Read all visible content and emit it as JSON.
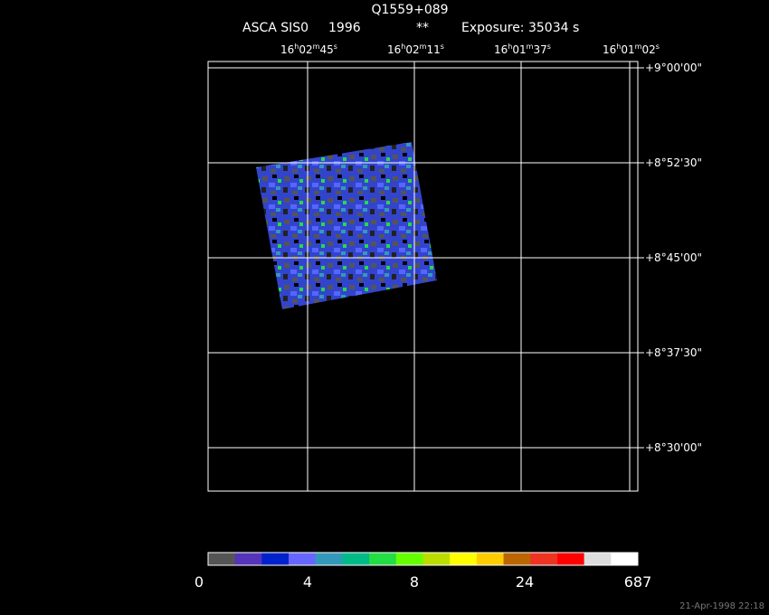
{
  "header": {
    "title": "Q1559+089",
    "instrument": "ASCA SIS0",
    "year": "1996",
    "flag": "**",
    "exposure": "Exposure: 35034 s"
  },
  "ra_ticks": [
    [
      "16",
      "h",
      "02",
      "m",
      "45",
      "s"
    ],
    [
      "16",
      "h",
      "02",
      "m",
      "11",
      "s"
    ],
    [
      "16",
      "h",
      "01",
      "m",
      "37",
      "s"
    ],
    [
      "16",
      "h",
      "01",
      "m",
      "02",
      "s"
    ]
  ],
  "dec_ticks": [
    "+9°00'00\"",
    "+8°52'30\"",
    "+8°45'00\"",
    "+8°37'30\"",
    "+8°30'00\""
  ],
  "colorbar": {
    "colors": [
      "#555555",
      "#5533bb",
      "#0022cc",
      "#6666ff",
      "#3399bb",
      "#00bb88",
      "#22dd44",
      "#66ff00",
      "#bbdd00",
      "#ffff00",
      "#ffcc00",
      "#bb6600",
      "#ee3322",
      "#ff0000",
      "#dddddd",
      "#ffffff"
    ],
    "labels": [
      "0",
      "4",
      "8",
      "24",
      "687"
    ]
  },
  "timestamp": "21-Apr-1998 22:18"
}
